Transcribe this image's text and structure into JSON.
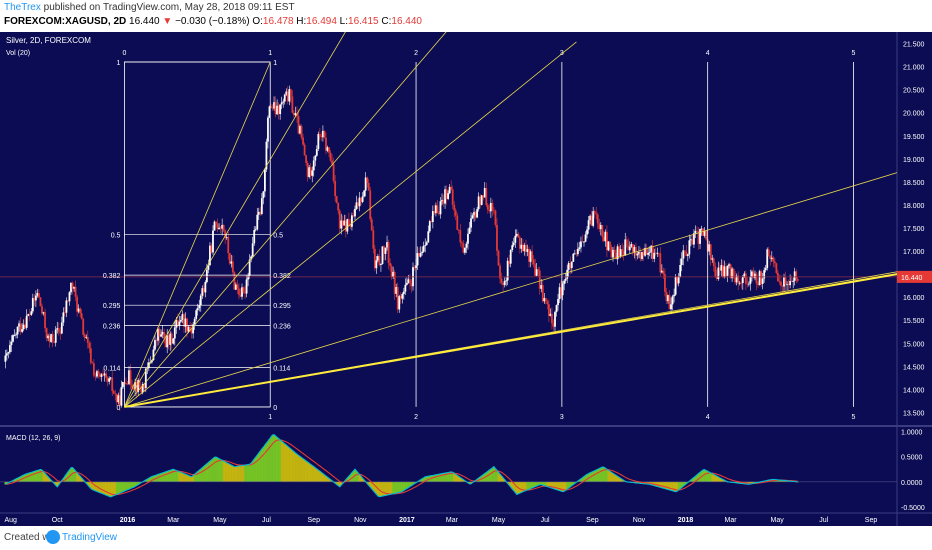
{
  "header": {
    "author": "TheTrex",
    "published": "published on TradingView.com, May 28, 2018 09:11 EST",
    "symbol": "FOREXCOM:XAGUSD, 2D",
    "last": "16.440",
    "change": "−0.030 (−0.18%)",
    "ohlc": [
      {
        "k": "O:",
        "v": "16.478"
      },
      {
        "k": "H:",
        "v": "16.494"
      },
      {
        "k": "L:",
        "v": "16.415"
      },
      {
        "k": "C:",
        "v": "16.440"
      }
    ]
  },
  "footer": {
    "created": "Created with",
    "brand": "TradingView"
  },
  "colors": {
    "background": "#0c0c54",
    "candle_up": "#ffffff",
    "candle_down": "#e53935",
    "fib_lines": "#ffffff",
    "fan_lines": "#e8d84a",
    "trendline": "#ffeb3b",
    "macd": "#00bcd4",
    "signal": "#e53935",
    "hist_pos": "#7ed321",
    "hist_neg": "#d4c20a",
    "price_tag": "#e53935"
  },
  "chart_data": [
    {
      "type": "candlestick",
      "title": "Silver, 2D, FOREXCOM",
      "indicator_label": "Vol (20)",
      "ylim": [
        13.25,
        21.75
      ],
      "yticks": [
        "21.500",
        "21.000",
        "20.500",
        "20.000",
        "19.500",
        "19.000",
        "18.500",
        "18.000",
        "17.500",
        "17.000",
        "16.500",
        "16.000",
        "15.500",
        "15.000",
        "14.500",
        "14.000",
        "13.500"
      ],
      "last_price_label": "16.440",
      "last_price": 16.44,
      "time_labels": [
        "Aug",
        "Oct",
        "2016",
        "Mar",
        "May",
        "Jul",
        "Sep",
        "Nov",
        "2017",
        "Mar",
        "May",
        "Jul",
        "Sep",
        "Nov",
        "2018",
        "Mar",
        "May",
        "Jul",
        "Sep"
      ],
      "bold_time_labels": [
        "2016",
        "2017",
        "2018"
      ],
      "price_path": [
        [
          "2015-07-25",
          14.6
        ],
        [
          "2015-08-10",
          15.3
        ],
        [
          "2015-08-25",
          15.6
        ],
        [
          "2015-09-05",
          16.1
        ],
        [
          "2015-09-20",
          15.0
        ],
        [
          "2015-10-05",
          15.3
        ],
        [
          "2015-10-20",
          16.3
        ],
        [
          "2015-11-05",
          15.2
        ],
        [
          "2015-11-20",
          14.3
        ],
        [
          "2015-12-10",
          14.1
        ],
        [
          "2015-12-20",
          13.7
        ],
        [
          "2015-12-30",
          14.3
        ],
        [
          "2016-01-20",
          14.0
        ],
        [
          "2016-02-10",
          15.2
        ],
        [
          "2016-02-25",
          15.0
        ],
        [
          "2016-03-10",
          15.6
        ],
        [
          "2016-03-25",
          15.3
        ],
        [
          "2016-04-10",
          16.2
        ],
        [
          "2016-04-25",
          17.6
        ],
        [
          "2016-05-05",
          17.6
        ],
        [
          "2016-05-20",
          16.3
        ],
        [
          "2016-06-01",
          16.0
        ],
        [
          "2016-06-15",
          17.4
        ],
        [
          "2016-06-25",
          18.0
        ],
        [
          "2016-07-05",
          20.2
        ],
        [
          "2016-07-15",
          20.0
        ],
        [
          "2016-07-30",
          20.4
        ],
        [
          "2016-08-15",
          19.5
        ],
        [
          "2016-08-25",
          18.6
        ],
        [
          "2016-09-10",
          19.6
        ],
        [
          "2016-09-25",
          18.9
        ],
        [
          "2016-10-05",
          17.5
        ],
        [
          "2016-10-20",
          17.6
        ],
        [
          "2016-11-10",
          18.6
        ],
        [
          "2016-11-20",
          16.6
        ],
        [
          "2016-12-05",
          17.1
        ],
        [
          "2016-12-20",
          15.9
        ],
        [
          "2017-01-05",
          16.3
        ],
        [
          "2017-02-01",
          17.6
        ],
        [
          "2017-02-25",
          18.4
        ],
        [
          "2017-03-15",
          17.0
        ],
        [
          "2017-04-10",
          18.3
        ],
        [
          "2017-04-25",
          17.8
        ],
        [
          "2017-05-05",
          16.2
        ],
        [
          "2017-05-25",
          17.3
        ],
        [
          "2017-06-15",
          16.8
        ],
        [
          "2017-07-10",
          15.4
        ],
        [
          "2017-07-25",
          16.4
        ],
        [
          "2017-08-15",
          17.0
        ],
        [
          "2017-09-05",
          17.9
        ],
        [
          "2017-09-25",
          16.9
        ],
        [
          "2017-10-15",
          17.1
        ],
        [
          "2017-11-05",
          16.9
        ],
        [
          "2017-11-25",
          17.0
        ],
        [
          "2017-12-10",
          15.8
        ],
        [
          "2017-12-30",
          17.0
        ],
        [
          "2018-01-15",
          17.3
        ],
        [
          "2018-01-25",
          17.4
        ],
        [
          "2018-02-10",
          16.5
        ],
        [
          "2018-02-25",
          16.6
        ],
        [
          "2018-03-15",
          16.4
        ],
        [
          "2018-04-10",
          16.4
        ],
        [
          "2018-04-20",
          17.0
        ],
        [
          "2018-05-01",
          16.4
        ],
        [
          "2018-05-15",
          16.3
        ],
        [
          "2018-05-28",
          16.44
        ]
      ],
      "fib_box": {
        "levels": [
          "1",
          "0.5",
          "0.382",
          "0.295",
          "0.236",
          "0.114",
          "0"
        ],
        "time_markers": [
          "0",
          "1",
          "2",
          "3",
          "4",
          "5"
        ]
      }
    },
    {
      "type": "line",
      "title": "MACD (12, 26, 9)",
      "ylim": [
        -0.6,
        1.05
      ],
      "yticks": [
        "1.0000",
        "0.5000",
        "0.0000",
        "-0.5000"
      ],
      "series": [
        {
          "name": "MACD"
        },
        {
          "name": "Signal"
        }
      ],
      "macd_path": [
        [
          "2015-07-25",
          -0.05
        ],
        [
          "2015-08-20",
          0.15
        ],
        [
          "2015-09-10",
          0.25
        ],
        [
          "2015-10-01",
          -0.1
        ],
        [
          "2015-10-20",
          0.3
        ],
        [
          "2015-11-15",
          -0.15
        ],
        [
          "2015-12-10",
          -0.3
        ],
        [
          "2016-01-10",
          -0.1
        ],
        [
          "2016-02-01",
          0.1
        ],
        [
          "2016-03-01",
          0.25
        ],
        [
          "2016-03-25",
          0.1
        ],
        [
          "2016-04-25",
          0.5
        ],
        [
          "2016-05-20",
          0.3
        ],
        [
          "2016-06-10",
          0.35
        ],
        [
          "2016-07-10",
          0.95
        ],
        [
          "2016-08-10",
          0.55
        ],
        [
          "2016-09-10",
          0.2
        ],
        [
          "2016-10-05",
          -0.1
        ],
        [
          "2016-10-25",
          0.25
        ],
        [
          "2016-11-25",
          -0.3
        ],
        [
          "2016-12-25",
          -0.2
        ],
        [
          "2017-01-25",
          0.1
        ],
        [
          "2017-03-01",
          0.2
        ],
        [
          "2017-03-25",
          -0.05
        ],
        [
          "2017-04-25",
          0.3
        ],
        [
          "2017-05-25",
          -0.25
        ],
        [
          "2017-06-25",
          -0.05
        ],
        [
          "2017-07-25",
          -0.2
        ],
        [
          "2017-08-25",
          0.15
        ],
        [
          "2017-09-15",
          0.3
        ],
        [
          "2017-10-15",
          0.0
        ],
        [
          "2017-11-15",
          -0.05
        ],
        [
          "2017-12-20",
          -0.2
        ],
        [
          "2018-01-25",
          0.25
        ],
        [
          "2018-02-25",
          0.0
        ],
        [
          "2018-03-25",
          -0.05
        ],
        [
          "2018-04-25",
          0.05
        ],
        [
          "2018-05-28",
          0.0
        ]
      ]
    }
  ]
}
